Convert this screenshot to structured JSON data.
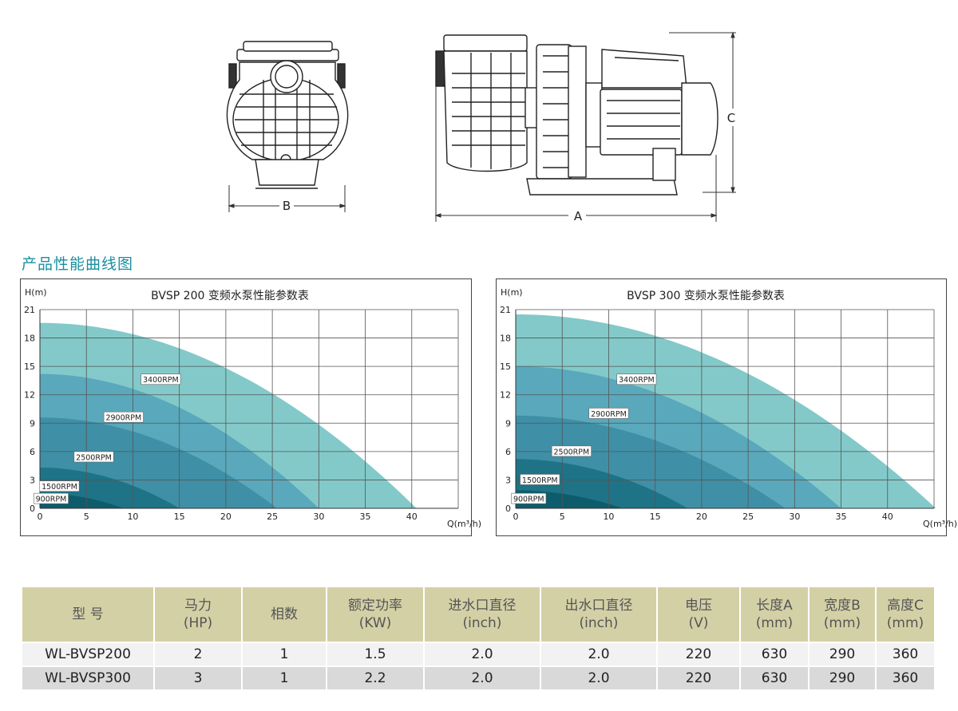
{
  "drawing": {
    "dim_b": "B",
    "dim_a": "A",
    "dim_c": "C"
  },
  "section_title": "产品性能曲线图",
  "chart_data": [
    {
      "type": "area",
      "title": "BVSP 200 变频水泵性能参数表",
      "xlabel": "Q(m³/h)",
      "ylabel": "H(m)",
      "xlim": [
        0,
        45
      ],
      "ylim": [
        0,
        21
      ],
      "xticks": [
        0,
        5,
        10,
        15,
        20,
        25,
        30,
        35,
        40
      ],
      "yticks": [
        0,
        3,
        6,
        9,
        12,
        15,
        18,
        21
      ],
      "grid": true,
      "series": [
        {
          "name": "3400RPM",
          "shutoff_head": 19.6,
          "max_flow": 40.5,
          "label_at": [
            13.0,
            13.6
          ],
          "color": "#83c9c9"
        },
        {
          "name": "2900RPM",
          "shutoff_head": 14.2,
          "max_flow": 30.0,
          "label_at": [
            9.0,
            9.6
          ],
          "color": "#5aa8bb"
        },
        {
          "name": "2500RPM",
          "shutoff_head": 9.6,
          "max_flow": 25.5,
          "label_at": [
            5.8,
            5.4
          ],
          "color": "#3f8fa6"
        },
        {
          "name": "1500RPM",
          "shutoff_head": 4.3,
          "max_flow": 15.0,
          "label_at": [
            2.1,
            2.3
          ],
          "color": "#1e7386"
        },
        {
          "name": "900RPM",
          "shutoff_head": 1.6,
          "max_flow": 9.0,
          "label_at": [
            1.2,
            1.0
          ],
          "color": "#0e5c6b"
        }
      ]
    },
    {
      "type": "area",
      "title": "BVSP 300 变频水泵性能参数表",
      "xlabel": "Q(m³/h)",
      "ylabel": "H(m)",
      "xlim": [
        0,
        45
      ],
      "ylim": [
        0,
        21
      ],
      "xticks": [
        0,
        5,
        10,
        15,
        20,
        25,
        30,
        35,
        40
      ],
      "yticks": [
        0,
        3,
        6,
        9,
        12,
        15,
        18,
        21
      ],
      "grid": true,
      "series": [
        {
          "name": "3400RPM",
          "shutoff_head": 20.5,
          "max_flow": 45.2,
          "label_at": [
            13.0,
            13.6
          ],
          "color": "#83c9c9"
        },
        {
          "name": "2900RPM",
          "shutoff_head": 15.0,
          "max_flow": 35.0,
          "label_at": [
            10.0,
            10.0
          ],
          "color": "#5aa8bb"
        },
        {
          "name": "2500RPM",
          "shutoff_head": 9.8,
          "max_flow": 29.0,
          "label_at": [
            6.0,
            6.0
          ],
          "color": "#3f8fa6"
        },
        {
          "name": "1500RPM",
          "shutoff_head": 5.2,
          "max_flow": 18.5,
          "label_at": [
            2.6,
            3.0
          ],
          "color": "#1e7386"
        },
        {
          "name": "900RPM",
          "shutoff_head": 1.9,
          "max_flow": 11.5,
          "label_at": [
            1.4,
            1.0
          ],
          "color": "#0e5c6b"
        }
      ]
    }
  ],
  "table": {
    "headers": [
      [
        "型 号",
        ""
      ],
      [
        "马力",
        "(HP)"
      ],
      [
        "相数",
        ""
      ],
      [
        "额定功率",
        "(KW)"
      ],
      [
        "进水口直径",
        "(inch)"
      ],
      [
        "出水口直径",
        "(inch)"
      ],
      [
        "电压",
        "(V)"
      ],
      [
        "长度A",
        "(mm)"
      ],
      [
        "宽度B",
        "(mm)"
      ],
      [
        "高度C",
        "(mm)"
      ]
    ],
    "rows": [
      [
        "WL-BVSP200",
        "2",
        "1",
        "1.5",
        "2.0",
        "2.0",
        "220",
        "630",
        "290",
        "360"
      ],
      [
        "WL-BVSP300",
        "3",
        "1",
        "2.2",
        "2.0",
        "2.0",
        "220",
        "630",
        "290",
        "360"
      ]
    ]
  }
}
